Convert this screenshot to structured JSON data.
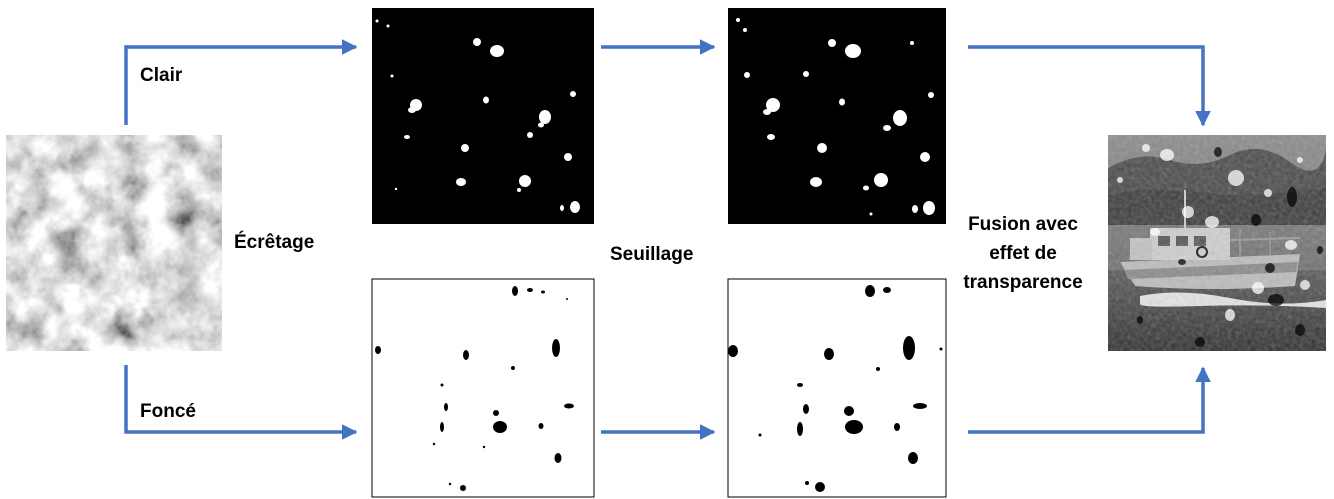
{
  "labels": {
    "clair": "Clair",
    "fonce": "Foncé",
    "ecretage": "Écrêtage",
    "seuillage": "Seuillage",
    "fusion_line1": "Fusion avec",
    "fusion_line2": "effet de",
    "fusion_line3": "transparence"
  },
  "colors": {
    "arrow": "#4472C4",
    "mask_dark": "#000000",
    "mask_light": "#ffffff",
    "noise_light": "#e0e0e0",
    "noise_dark": "#3a3a3a",
    "photo_sky": "#9a9a9a",
    "photo_sea": "#555555"
  }
}
